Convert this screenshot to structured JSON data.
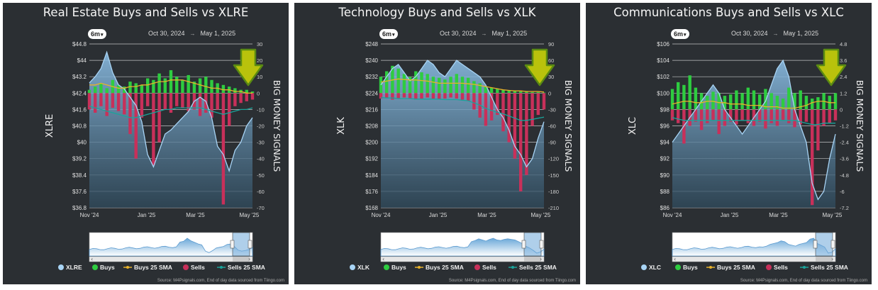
{
  "colors": {
    "panel_bg": "#2b2f33",
    "price_line": "#a8d4f5",
    "price_area_top": "#8ec2ea",
    "buys": "#2ecc40",
    "sells": "#c8305a",
    "buys_sma": "#e8b22a",
    "sells_sma": "#1aa39a",
    "arrow": "#b9c20c"
  },
  "panels": [
    {
      "title": "Real Estate Buys and Sells vs XLRE",
      "range_button": "6m",
      "date_from": "Oct 30, 2024",
      "date_arrow": "→",
      "date_to": "May 1, 2025",
      "left_ticks": [
        "$44.8",
        "$44",
        "$43.2",
        "$42.4",
        "$41.6",
        "$40.8",
        "$40",
        "$39.2",
        "$38.4",
        "$37.6",
        "$36.8"
      ],
      "right_ticks": [
        "30",
        "20",
        "10",
        "0",
        "-10",
        "-20",
        "-30",
        "-40",
        "-50",
        "-60",
        "-70"
      ],
      "x_ticks": [
        "Nov '24",
        "Jan '25",
        "Mar '25",
        "May '25"
      ],
      "y_axis_label": "XLRE",
      "right_axis_label": "BIG MONEY SIGNALS",
      "legend": [
        "XLRE",
        "Buys",
        "Buys 25 SMA",
        "Sells",
        "Sells 25 SMA"
      ],
      "source": "Source: M4Psignals.com, End of day data sourced from Tiingo.com"
    },
    {
      "title": "Technology Buys and Sells vs XLK",
      "range_button": "6m",
      "date_from": "Oct 30, 2024",
      "date_arrow": "→",
      "date_to": "May 1, 2025",
      "left_ticks": [
        "$248",
        "$240",
        "$232",
        "$224",
        "$216",
        "$208",
        "$200",
        "$192",
        "$184",
        "$176",
        "$168"
      ],
      "right_ticks": [
        "90",
        "60",
        "30",
        "0",
        "-30",
        "-60",
        "-90",
        "-120",
        "-150",
        "-180",
        "-210"
      ],
      "x_ticks": [
        "Nov '24",
        "Jan '25",
        "Mar '25",
        "May '25"
      ],
      "y_axis_label": "XLK",
      "right_axis_label": "BIG MONEY SIGNALS",
      "legend": [
        "XLK",
        "Buys",
        "Buys 25 SMA",
        "Sells",
        "Sells 25 SMA"
      ],
      "source": "Source: M4Psignals.com, End of day data sourced from Tiingo.com"
    },
    {
      "title": "Communications Buys and Sells vs XLC",
      "range_button": "6m",
      "date_from": "Oct 30, 2024",
      "date_arrow": "→",
      "date_to": "May 1, 2025",
      "left_ticks": [
        "$106",
        "$104",
        "$102",
        "$100",
        "$98",
        "$96",
        "$94",
        "$92",
        "$90",
        "$88",
        "$86"
      ],
      "right_ticks": [
        "4.8",
        "3.6",
        "2.4",
        "1.2",
        "0",
        "-1.2",
        "-2.4",
        "-3.6",
        "-4.8",
        "-6",
        "-7.2"
      ],
      "x_ticks": [
        "Nov '24",
        "Jan '25",
        "Mar '25",
        "May '25"
      ],
      "y_axis_label": "XLC",
      "right_axis_label": "BIG MONEY SIGNALS",
      "legend": [
        "XLC",
        "Buys",
        "Buys 25 SMA",
        "Sells",
        "Sells 25 SMA"
      ],
      "source": "Source: M4Psignals.com, End of day data sourced from Tiingo.com"
    }
  ],
  "chart_data": [
    {
      "type": "line",
      "title": "Real Estate Buys and Sells vs XLRE",
      "ylabel": "XLRE",
      "y2label": "BIG MONEY SIGNALS",
      "ylim": [
        36.8,
        44.8
      ],
      "y2lim": [
        -70,
        30
      ],
      "x_ticks": [
        "Nov '24",
        "Jan '25",
        "Mar '25",
        "May '25"
      ],
      "price": [
        42.9,
        43.2,
        43.6,
        44.4,
        43.4,
        42.8,
        42.6,
        42.2,
        41.8,
        41.0,
        39.4,
        38.8,
        39.6,
        40.4,
        40.6,
        40.9,
        41.2,
        41.5,
        42.0,
        42.2,
        42.0,
        41.2,
        39.8,
        39.4,
        38.6,
        39.6,
        40.0,
        40.8,
        41.2
      ],
      "buys": [
        2,
        4,
        6,
        3,
        8,
        5,
        4,
        7,
        6,
        5,
        9,
        8,
        12,
        9,
        14,
        10,
        8,
        11,
        7,
        9,
        10,
        8,
        6,
        5,
        4,
        3,
        2,
        2,
        1
      ],
      "sells": [
        -10,
        -12,
        -8,
        -14,
        -9,
        -11,
        -13,
        -25,
        -40,
        -15,
        -8,
        -44,
        -30,
        -10,
        -12,
        -8,
        -9,
        -11,
        -10,
        -14,
        -12,
        -15,
        -10,
        -68,
        -20,
        -8,
        -6,
        -5,
        -4
      ],
      "buys_sma": [
        5,
        5,
        6,
        5,
        4,
        3,
        3,
        4,
        4,
        5,
        5,
        6,
        7,
        7,
        8,
        8,
        8,
        7,
        6,
        5,
        4,
        3,
        3,
        2,
        2,
        1,
        1,
        0,
        0
      ],
      "sells_sma": [
        -8,
        -9,
        -10,
        -11,
        -12,
        -13,
        -14,
        -15,
        -15,
        -14,
        -13,
        -12,
        -11,
        -10,
        -10,
        -9,
        -9,
        -9,
        -9,
        -9,
        -10,
        -11,
        -12,
        -13,
        -12,
        -11,
        -10,
        -10,
        -9
      ]
    },
    {
      "type": "line",
      "title": "Technology Buys and Sells vs XLK",
      "ylabel": "XLK",
      "y2label": "BIG MONEY SIGNALS",
      "ylim": [
        168,
        248
      ],
      "y2lim": [
        -210,
        90
      ],
      "x_ticks": [
        "Nov '24",
        "Jan '25",
        "Mar '25",
        "May '25"
      ],
      "price": [
        228,
        232,
        236,
        238,
        234,
        230,
        232,
        236,
        240,
        238,
        234,
        232,
        236,
        240,
        238,
        236,
        234,
        232,
        228,
        222,
        216,
        212,
        206,
        198,
        194,
        188,
        192,
        202,
        210
      ],
      "buys": [
        30,
        40,
        50,
        45,
        35,
        30,
        40,
        38,
        35,
        30,
        28,
        25,
        30,
        35,
        30,
        28,
        22,
        18,
        12,
        10,
        8,
        6,
        5,
        4,
        3,
        3,
        2,
        2,
        1
      ],
      "sells": [
        -10,
        -8,
        -12,
        -10,
        -8,
        -10,
        -12,
        -10,
        -8,
        -10,
        -12,
        -10,
        -8,
        -10,
        -12,
        -14,
        -30,
        -45,
        -60,
        -50,
        -40,
        -70,
        -90,
        -120,
        -180,
        -150,
        -60,
        -40,
        -30
      ],
      "buys_sma": [
        20,
        22,
        24,
        26,
        25,
        24,
        24,
        23,
        22,
        20,
        18,
        18,
        18,
        18,
        18,
        17,
        16,
        14,
        12,
        10,
        8,
        6,
        5,
        4,
        4,
        3,
        3,
        3,
        2
      ],
      "sells_sma": [
        -8,
        -9,
        -9,
        -10,
        -10,
        -10,
        -11,
        -11,
        -11,
        -11,
        -11,
        -12,
        -12,
        -12,
        -13,
        -14,
        -18,
        -22,
        -28,
        -32,
        -35,
        -38,
        -42,
        -46,
        -50,
        -50,
        -48,
        -46,
        -44
      ]
    },
    {
      "type": "line",
      "title": "Communications Buys and Sells vs XLC",
      "ylabel": "XLC",
      "y2label": "BIG MONEY SIGNALS",
      "ylim": [
        86,
        106
      ],
      "y2lim": [
        -7.2,
        4.8
      ],
      "x_ticks": [
        "Nov '24",
        "Jan '25",
        "Mar '25",
        "May '25"
      ],
      "price": [
        94,
        95,
        96,
        97,
        98,
        99,
        100,
        101,
        100,
        98,
        97,
        96,
        95,
        96,
        97,
        98,
        99,
        101,
        103,
        104,
        102,
        98,
        96,
        94,
        89,
        87,
        88,
        92,
        95
      ],
      "buys": [
        1.5,
        2.0,
        1.8,
        2.5,
        1.6,
        1.2,
        1.0,
        1.3,
        1.2,
        1.0,
        1.1,
        1.4,
        1.2,
        1.6,
        1.4,
        1.1,
        1.5,
        1.2,
        1.0,
        0.8,
        1.6,
        1.2,
        1.4,
        1.0,
        0.8,
        0.9,
        1.2,
        1.0,
        1.2
      ],
      "sells": [
        -0.8,
        -1.0,
        -2.5,
        -1.2,
        -0.9,
        -1.5,
        -1.0,
        -0.8,
        -1.8,
        -1.2,
        -0.9,
        -1.1,
        -0.8,
        -1.0,
        -1.2,
        -0.9,
        -1.4,
        -1.0,
        -1.2,
        -0.8,
        -1.0,
        -1.3,
        -1.1,
        -0.9,
        -7.0,
        -3.0,
        -1.2,
        -1.0,
        -0.8
      ],
      "buys_sma": [
        0.4,
        0.5,
        0.6,
        0.6,
        0.5,
        0.5,
        0.6,
        0.6,
        0.5,
        0.5,
        0.4,
        0.4,
        0.4,
        0.3,
        0.3,
        0.3,
        0.2,
        0.2,
        0.2,
        0.1,
        0.1,
        0.1,
        0.2,
        0.3,
        0.5,
        0.6,
        0.6,
        0.5,
        0.5
      ],
      "sells_sma": [
        -0.6,
        -0.7,
        -0.8,
        -0.8,
        -0.8,
        -0.8,
        -0.8,
        -0.8,
        -0.8,
        -0.8,
        -0.8,
        -0.8,
        -0.8,
        -0.8,
        -0.8,
        -0.8,
        -0.8,
        -0.8,
        -0.8,
        -0.8,
        -0.8,
        -0.8,
        -0.9,
        -1.0,
        -1.1,
        -1.1,
        -1.0,
        -1.0,
        -1.0
      ]
    }
  ]
}
